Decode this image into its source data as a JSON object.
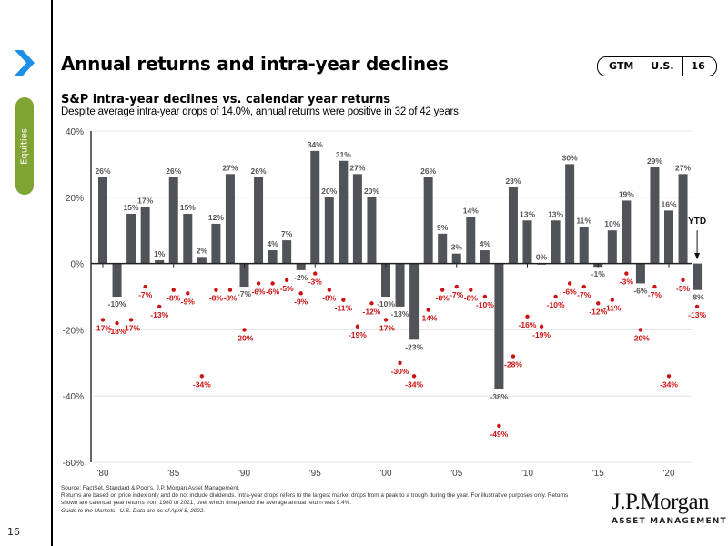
{
  "page": {
    "title": "Annual returns and intra-year declines",
    "badge": [
      "GTM",
      "U.S.",
      "16"
    ],
    "section_tab": "Equities",
    "page_number": "16",
    "nav_icon": "chevron-right-icon",
    "accent_colors": {
      "chevron": "#1e8fe8",
      "section_tab": "#7fa433",
      "bars": "#505357",
      "declines": "#cc1111"
    }
  },
  "chart_data": {
    "type": "bar",
    "title": "S&P intra-year declines vs. calendar year returns",
    "subtitle": "Despite average intra-year drops of 14.0%, annual returns were positive in 32 of 42 years",
    "xlabel": "",
    "ylabel": "",
    "ylim": [
      -60,
      40
    ],
    "y_ticks": [
      "40%",
      "20%",
      "0%",
      "-20%",
      "-40%",
      "-60%"
    ],
    "y_tick_values": [
      40,
      20,
      0,
      -20,
      -40,
      -60
    ],
    "x_ticks": [
      "'80",
      "'85",
      "'90",
      "'95",
      "'00",
      "'05",
      "'10",
      "'15",
      "'20"
    ],
    "x_tick_years": [
      1980,
      1985,
      1990,
      1995,
      2000,
      2005,
      2010,
      2015,
      2020
    ],
    "grid": true,
    "ytd_label": "YTD",
    "categories": [
      1980,
      1981,
      1982,
      1983,
      1984,
      1985,
      1986,
      1987,
      1988,
      1989,
      1990,
      1991,
      1992,
      1993,
      1994,
      1995,
      1996,
      1997,
      1998,
      1999,
      2000,
      2001,
      2002,
      2003,
      2004,
      2005,
      2006,
      2007,
      2008,
      2009,
      2010,
      2011,
      2012,
      2013,
      2014,
      2015,
      2016,
      2017,
      2018,
      2019,
      2020,
      2021,
      2022
    ],
    "series": [
      {
        "name": "Calendar year return",
        "kind": "bar",
        "color": "#505357",
        "values": [
          26,
          -10,
          15,
          17,
          1,
          26,
          15,
          2,
          12,
          27,
          -7,
          26,
          4,
          7,
          -2,
          34,
          20,
          31,
          27,
          20,
          -10,
          -13,
          -23,
          26,
          9,
          3,
          14,
          4,
          -38,
          23,
          13,
          0,
          13,
          30,
          11,
          -1,
          10,
          19,
          -6,
          29,
          16,
          27,
          -8
        ]
      },
      {
        "name": "Intra-year decline",
        "kind": "scatter",
        "color": "#cc1111",
        "values": [
          -17,
          -18,
          -17,
          -7,
          -13,
          -8,
          -9,
          -34,
          -8,
          -8,
          -20,
          -6,
          -6,
          -5,
          -9,
          -3,
          -8,
          -11,
          -19,
          -12,
          -17,
          -30,
          -34,
          -14,
          -8,
          -7,
          -8,
          -10,
          -49,
          -28,
          -16,
          -19,
          -10,
          -6,
          -7,
          -12,
          -11,
          -3,
          -20,
          -7,
          -34,
          -5,
          -13
        ]
      }
    ]
  },
  "footnotes": {
    "source": "Source: FactSet, Standard & Poor's, J.P. Morgan Asset Management.",
    "note": "Returns are based on price index only and do not include dividends. Intra-year drops refers to the largest market drops from a peak to a trough during the year. For illustrative purposes only. Returns shown are calendar year returns from 1980 to 2021, over which time period the average annual return was 9.4%.",
    "guide": "Guide to the Markets –U.S. Data are as of April 8, 2022."
  },
  "logo": {
    "name": "J.P.Morgan",
    "sub": "ASSET MANAGEMENT"
  }
}
